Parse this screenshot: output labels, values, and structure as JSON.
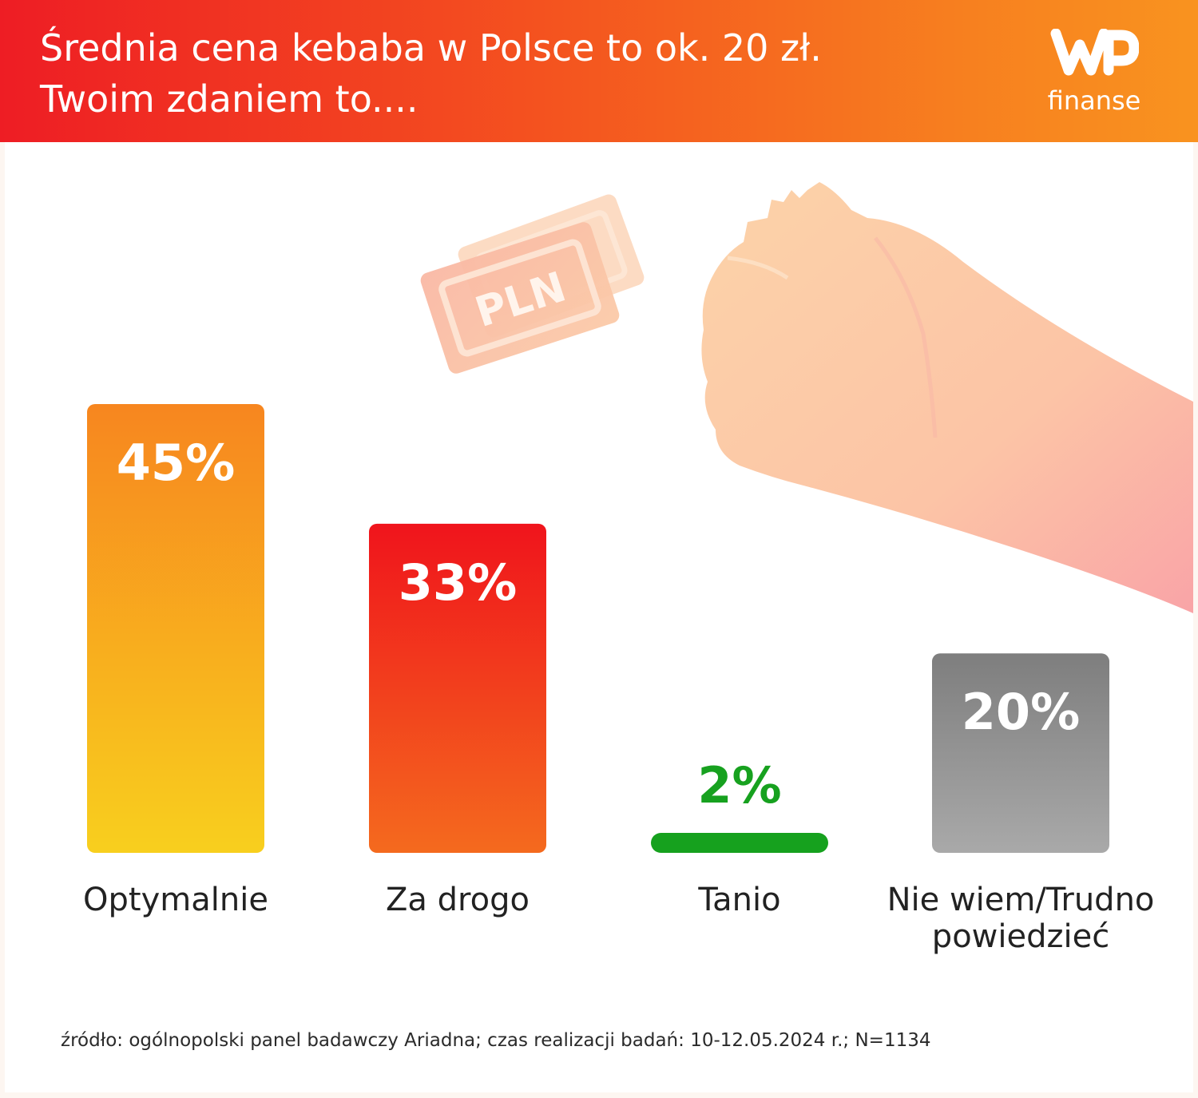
{
  "header": {
    "title_line1": "Średnia cena kebaba w Polsce to ok. 20 zł.",
    "title_line2": "Twoim zdaniem to...."
  },
  "logo": {
    "subtitle": "finanse"
  },
  "illustration": {
    "banknote_text": "PLN"
  },
  "chart_data": {
    "type": "bar",
    "categories": [
      "Optymalnie",
      "Za drogo",
      "Tanio",
      "Nie wiem/Trudno powiedzieć"
    ],
    "category_lines": [
      [
        "Optymalnie"
      ],
      [
        "Za drogo"
      ],
      [
        "Tanio"
      ],
      [
        "Nie wiem/Trudno",
        "powiedzieć"
      ]
    ],
    "values": [
      45,
      33,
      2,
      20
    ],
    "value_labels": [
      "45%",
      "33%",
      "2%",
      "20%"
    ],
    "ylim": [
      0,
      45
    ],
    "title": "",
    "xlabel": "",
    "ylabel": "",
    "grid": false,
    "colors": [
      [
        "#f7861f",
        "#f8cf1e"
      ],
      [
        "#f0141c",
        "#f46a1e"
      ],
      [
        "#16a11e",
        "#16a11e"
      ],
      [
        "#7e7e7e",
        "#a9a9a9"
      ]
    ],
    "label_colors": [
      "#ffffff",
      "#ffffff",
      "#17a11f",
      "#ffffff"
    ]
  },
  "footer": {
    "source": "źródło: ogólnopolski panel badawczy Ariadna; czas realizacji badań: 10-12.05.2024 r.; N=1134"
  }
}
